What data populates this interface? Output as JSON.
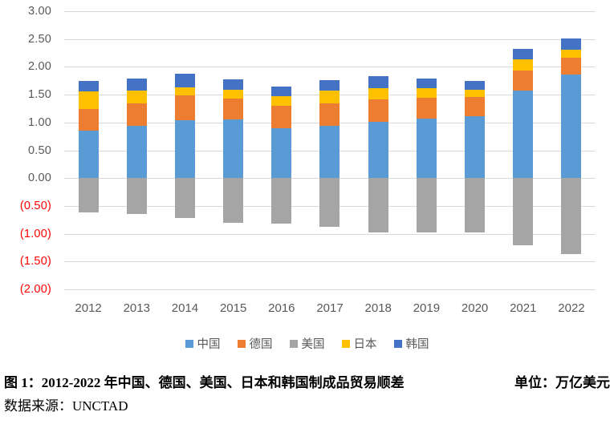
{
  "chart_data": {
    "type": "bar",
    "stacked": true,
    "categories": [
      "2012",
      "2013",
      "2014",
      "2015",
      "2016",
      "2017",
      "2018",
      "2019",
      "2020",
      "2021",
      "2022"
    ],
    "series": [
      {
        "name": "中国",
        "key": "china",
        "color": "#5B9BD5",
        "values": [
          0.85,
          0.94,
          1.04,
          1.06,
          0.9,
          0.94,
          1.01,
          1.07,
          1.11,
          1.57,
          1.86
        ]
      },
      {
        "name": "德国",
        "key": "germany",
        "color": "#ED7D31",
        "values": [
          0.39,
          0.41,
          0.44,
          0.37,
          0.4,
          0.4,
          0.4,
          0.38,
          0.35,
          0.37,
          0.3
        ]
      },
      {
        "name": "美国",
        "key": "usa",
        "color": "#A5A5A5",
        "values": [
          -0.62,
          -0.64,
          -0.72,
          -0.8,
          -0.82,
          -0.88,
          -0.97,
          -0.97,
          -0.97,
          -1.21,
          -1.36
        ]
      },
      {
        "name": "日本",
        "key": "japan",
        "color": "#FFC000",
        "values": [
          0.32,
          0.23,
          0.15,
          0.16,
          0.17,
          0.23,
          0.21,
          0.16,
          0.13,
          0.19,
          0.15
        ]
      },
      {
        "name": "韩国",
        "key": "korea",
        "color": "#4472C4",
        "values": [
          0.18,
          0.21,
          0.25,
          0.19,
          0.17,
          0.19,
          0.22,
          0.18,
          0.15,
          0.19,
          0.2
        ]
      }
    ],
    "stack_order": [
      "china",
      "germany",
      "japan",
      "korea",
      "usa"
    ],
    "ylim": [
      -2.0,
      3.0
    ],
    "yticks": [
      {
        "value": 3.0,
        "label": "3.00"
      },
      {
        "value": 2.5,
        "label": "2.50"
      },
      {
        "value": 2.0,
        "label": "2.00"
      },
      {
        "value": 1.5,
        "label": "1.50"
      },
      {
        "value": 1.0,
        "label": "1.00"
      },
      {
        "value": 0.5,
        "label": "0.50"
      },
      {
        "value": 0.0,
        "label": "0.00"
      },
      {
        "value": -0.5,
        "label": "(0.50)"
      },
      {
        "value": -1.0,
        "label": "(1.00)"
      },
      {
        "value": -1.5,
        "label": "(1.50)"
      },
      {
        "value": -2.0,
        "label": "(2.00)"
      }
    ],
    "grid": true,
    "legend_position": "bottom",
    "colors": {
      "gridline": "#D9D9D9",
      "axis_text": "#595959",
      "negative_tick_text": "#FF0000"
    }
  },
  "caption": {
    "title": "图 1：2012-2022 年中国、德国、美国、日本和韩国制成品贸易顺差",
    "unit": "单位：万亿美元",
    "source": "数据来源：UNCTAD"
  }
}
